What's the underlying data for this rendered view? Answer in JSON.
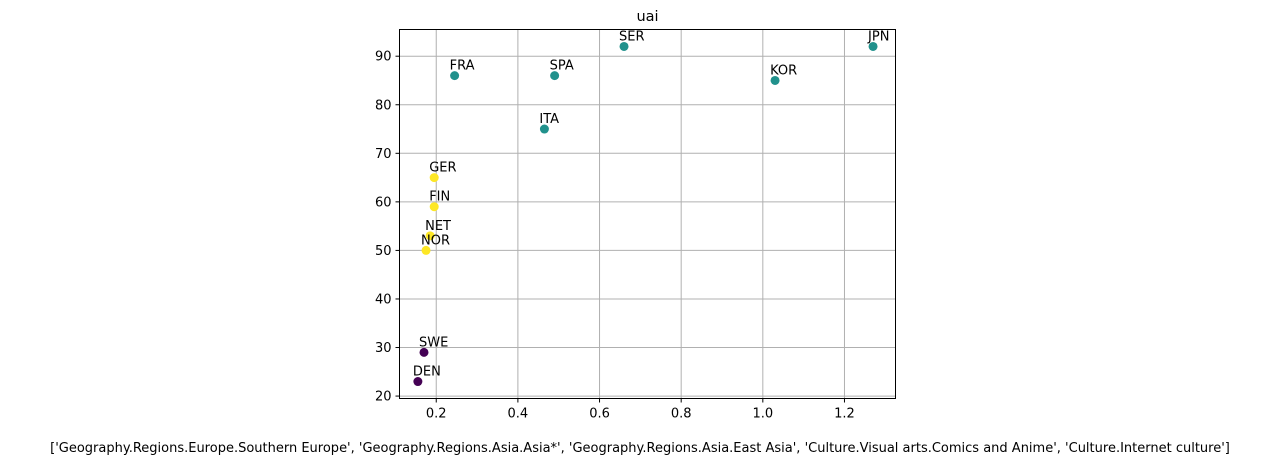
{
  "chart_data": {
    "type": "scatter",
    "title": "uai",
    "xlabel": "['Geography.Regions.Europe.Southern Europe', 'Geography.Regions.Asia.Asia*', 'Geography.Regions.Asia.East Asia', 'Culture.Visual arts.Comics and Anime', 'Culture.Internet culture']",
    "ylabel": "",
    "xlim": [
      0.11,
      1.325
    ],
    "ylim": [
      19.5,
      95.5
    ],
    "xticks": [
      0.2,
      0.4,
      0.6,
      0.8,
      1.0,
      1.2
    ],
    "xtick_labels": [
      "0.2",
      "0.4",
      "0.6",
      "0.8",
      "1.0",
      "1.2"
    ],
    "yticks": [
      20,
      30,
      40,
      50,
      60,
      70,
      80,
      90
    ],
    "ytick_labels": [
      "20",
      "30",
      "40",
      "50",
      "60",
      "70",
      "80",
      "90"
    ],
    "grid": true,
    "cluster_colors": [
      "#440154",
      "#21918c",
      "#fde725"
    ],
    "points": [
      {
        "label": "JPN",
        "x": 1.27,
        "y": 92,
        "cluster": 1
      },
      {
        "label": "SER",
        "x": 0.66,
        "y": 92,
        "cluster": 1
      },
      {
        "label": "FRA",
        "x": 0.245,
        "y": 86,
        "cluster": 1
      },
      {
        "label": "SPA",
        "x": 0.49,
        "y": 86,
        "cluster": 1
      },
      {
        "label": "KOR",
        "x": 1.03,
        "y": 85,
        "cluster": 1
      },
      {
        "label": "ITA",
        "x": 0.465,
        "y": 75,
        "cluster": 1
      },
      {
        "label": "GER",
        "x": 0.195,
        "y": 65,
        "cluster": 2
      },
      {
        "label": "FIN",
        "x": 0.195,
        "y": 59,
        "cluster": 2
      },
      {
        "label": "NET",
        "x": 0.185,
        "y": 53,
        "cluster": 2
      },
      {
        "label": "NOR",
        "x": 0.175,
        "y": 50,
        "cluster": 2
      },
      {
        "label": "SWE",
        "x": 0.17,
        "y": 29,
        "cluster": 0
      },
      {
        "label": "DEN",
        "x": 0.155,
        "y": 23,
        "cluster": 0
      }
    ]
  }
}
